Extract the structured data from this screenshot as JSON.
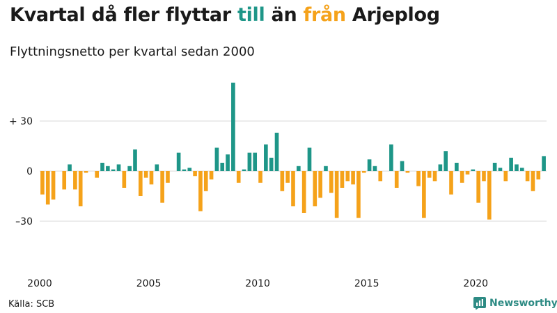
{
  "title": {
    "part1": "Kvartal då fler flyttar ",
    "till": "till",
    "part2": " än ",
    "fran": "från",
    "part3": " Arjeplog"
  },
  "subtitle": "Flyttningsnetto per kvartal sedan 2000",
  "source": "Källa: SCB",
  "logo_text": "Newsworthy",
  "colors": {
    "positive": "#1e9688",
    "negative": "#f5a21a",
    "grid": "#d9d9d9",
    "title_till": "#1e9688",
    "title_fran": "#f5a21a"
  },
  "chart_data": {
    "type": "bar",
    "xlim": [
      2000,
      2023.75
    ],
    "ylim": [
      -45,
      55
    ],
    "grid": true,
    "y_ticks": [
      {
        "value": 30,
        "label": "+ 30"
      },
      {
        "value": 0,
        "label": "0"
      },
      {
        "value": -30,
        "label": "–30"
      }
    ],
    "x_ticks": [
      2000,
      2005,
      2010,
      2015,
      2020
    ],
    "start_year": 2000,
    "values": [
      -14,
      -20,
      -17,
      0,
      -11,
      4,
      -11,
      -21,
      -1,
      0,
      -4,
      5,
      3,
      1,
      4,
      -10,
      3,
      13,
      -15,
      -4,
      -8,
      4,
      -19,
      -7,
      0,
      11,
      1,
      2,
      -3,
      -24,
      -12,
      -5,
      14,
      5,
      10,
      53,
      -7,
      1,
      11,
      11,
      -7,
      16,
      8,
      23,
      -12,
      -7,
      -21,
      3,
      -25,
      14,
      -21,
      -16,
      3,
      -13,
      -28,
      -10,
      -6,
      -8,
      -28,
      -1,
      7,
      3,
      -6,
      0,
      16,
      -10,
      6,
      -1,
      0,
      -9,
      -28,
      -4,
      -6,
      4,
      12,
      -14,
      5,
      -7,
      -2,
      1,
      -19,
      -6,
      -29,
      5,
      2,
      -6,
      8,
      4,
      2,
      -6,
      -12,
      -5,
      9
    ]
  }
}
